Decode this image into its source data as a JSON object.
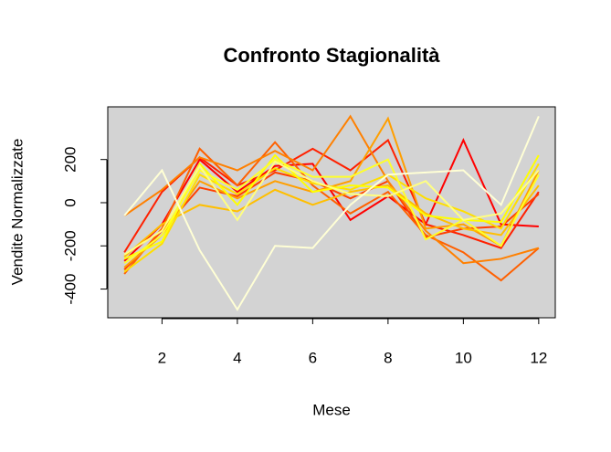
{
  "chart_data": {
    "type": "line",
    "title": "Confronto Stagionalità",
    "x_label": "Mese",
    "y_label": "Vendite Normalizzate",
    "x": [
      1,
      2,
      3,
      4,
      5,
      6,
      7,
      8,
      9,
      10,
      11,
      12
    ],
    "xlim": [
      0.56,
      12.44
    ],
    "xticks": [
      2,
      4,
      6,
      8,
      10,
      12
    ],
    "ylim": [
      -533,
      444
    ],
    "yticks": [
      -400,
      -200,
      0,
      200
    ],
    "background": "#d3d3d3",
    "series": [
      {
        "color": "#ff0000",
        "values": [
          -270,
          -100,
          200,
          50,
          170,
          180,
          -80,
          30,
          -100,
          290,
          -100,
          -110
        ]
      },
      {
        "color": "#ff2000",
        "values": [
          -230,
          50,
          210,
          80,
          150,
          250,
          150,
          290,
          -100,
          -150,
          -210,
          50
        ]
      },
      {
        "color": "#ff4000",
        "values": [
          -310,
          -130,
          70,
          30,
          140,
          100,
          20,
          100,
          -160,
          -120,
          -110,
          40
        ]
      },
      {
        "color": "#ff6000",
        "values": [
          -330,
          -120,
          250,
          80,
          280,
          80,
          -50,
          50,
          -150,
          -230,
          -360,
          -210
        ]
      },
      {
        "color": "#ff8000",
        "values": [
          -60,
          60,
          210,
          150,
          240,
          150,
          400,
          100,
          -130,
          -280,
          -260,
          -210
        ]
      },
      {
        "color": "#ff9f00",
        "values": [
          -300,
          -150,
          100,
          20,
          100,
          50,
          100,
          390,
          -120,
          -100,
          -200,
          150
        ]
      },
      {
        "color": "#ffbf00",
        "values": [
          -250,
          -100,
          -10,
          -40,
          60,
          -10,
          50,
          80,
          -50,
          -120,
          -150,
          80
        ]
      },
      {
        "color": "#ffdf00",
        "values": [
          -320,
          -190,
          130,
          40,
          160,
          90,
          60,
          130,
          20,
          -40,
          -120,
          180
        ]
      },
      {
        "color": "#ffff00",
        "values": [
          -260,
          -180,
          180,
          -10,
          220,
          50,
          80,
          70,
          -60,
          -80,
          -90,
          220
        ]
      },
      {
        "color": "#ffff2a",
        "values": [
          -280,
          -150,
          150,
          60,
          200,
          120,
          120,
          200,
          -170,
          -80,
          -200,
          130
        ]
      },
      {
        "color": "#ffff80",
        "values": [
          -240,
          -130,
          170,
          -80,
          190,
          100,
          40,
          30,
          100,
          -80,
          -50,
          150
        ]
      },
      {
        "color": "#ffffd5",
        "values": [
          -60,
          150,
          -220,
          -495,
          -200,
          -210,
          -10,
          130,
          140,
          150,
          -10,
          400
        ]
      }
    ]
  }
}
